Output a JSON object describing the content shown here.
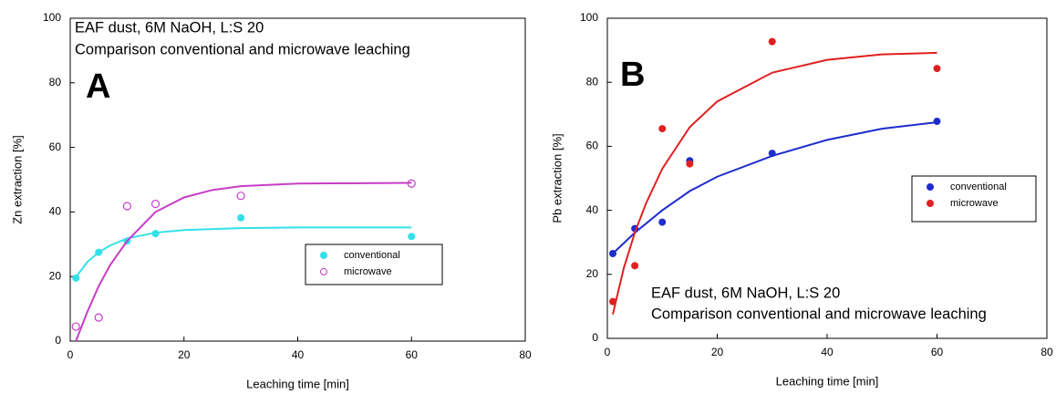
{
  "chart_data": [
    {
      "type": "scatter",
      "panel_label": "A",
      "annotations": [
        "EAF dust, 6M NaOH, L:S 20",
        "Comparison conventional and microwave leaching"
      ],
      "x_label": "Leaching time [min]",
      "y_label": "Zn extraction [%]",
      "xlim": [
        0,
        80
      ],
      "ylim": [
        0,
        100
      ],
      "xticks": [
        0,
        20,
        40,
        60,
        80
      ],
      "yticks": [
        0,
        20,
        40,
        60,
        80,
        100
      ],
      "series": [
        {
          "name": "conventional",
          "color": "#33e0e8",
          "filled": true,
          "x": [
            1,
            5,
            10,
            15,
            30,
            60
          ],
          "values": [
            19.5,
            27.5,
            31,
            33.3,
            38.2,
            32.4
          ],
          "fit_x": [
            1,
            3,
            5,
            7,
            10,
            15,
            20,
            30,
            40,
            60
          ],
          "fit_values": [
            19.8,
            24.5,
            27.5,
            29.6,
            31.8,
            33.6,
            34.4,
            35,
            35.2,
            35.2
          ]
        },
        {
          "name": "microwave",
          "color": "#c83cc8",
          "filled": false,
          "x": [
            1,
            5,
            10,
            15,
            30,
            60
          ],
          "values": [
            4.5,
            7.3,
            41.8,
            42.5,
            45,
            48.8
          ],
          "fit_x": [
            1,
            3,
            5,
            7,
            10,
            15,
            20,
            25,
            30,
            40,
            60
          ],
          "fit_values": [
            0,
            9,
            17,
            23.5,
            31,
            40,
            44.5,
            46.8,
            48,
            48.8,
            49
          ]
        }
      ]
    },
    {
      "type": "scatter",
      "panel_label": "B",
      "annotations": [
        "EAF dust, 6M NaOH, L:S 20",
        "Comparison conventional and microwave leaching"
      ],
      "x_label": "Leaching time [min]",
      "y_label": "Pb extraction [%]",
      "xlim": [
        0,
        80
      ],
      "ylim": [
        0,
        100
      ],
      "xticks": [
        0,
        20,
        40,
        60,
        80
      ],
      "yticks": [
        0,
        20,
        40,
        60,
        80,
        100
      ],
      "series": [
        {
          "name": "conventional",
          "color": "#1f2ccc",
          "filled": true,
          "x": [
            1,
            5,
            10,
            15,
            30,
            60
          ],
          "values": [
            26.5,
            34.3,
            36.3,
            55.5,
            57.8,
            67.8
          ],
          "fit_x": [
            1,
            5,
            10,
            15,
            20,
            30,
            40,
            50,
            60
          ],
          "fit_values": [
            26.5,
            33,
            40,
            46,
            50.5,
            57,
            62,
            65.5,
            67.5
          ]
        },
        {
          "name": "microwave",
          "color": "#e02020",
          "filled": true,
          "x": [
            1,
            5,
            10,
            15,
            30,
            60
          ],
          "values": [
            11.5,
            22.7,
            65.5,
            54.5,
            92.7,
            84.3
          ],
          "fit_x": [
            1,
            3,
            5,
            7,
            10,
            15,
            20,
            30,
            40,
            50,
            60
          ],
          "fit_values": [
            7.5,
            22,
            33,
            42,
            53,
            66,
            74,
            83,
            87,
            88.7,
            89.2
          ]
        }
      ]
    }
  ]
}
